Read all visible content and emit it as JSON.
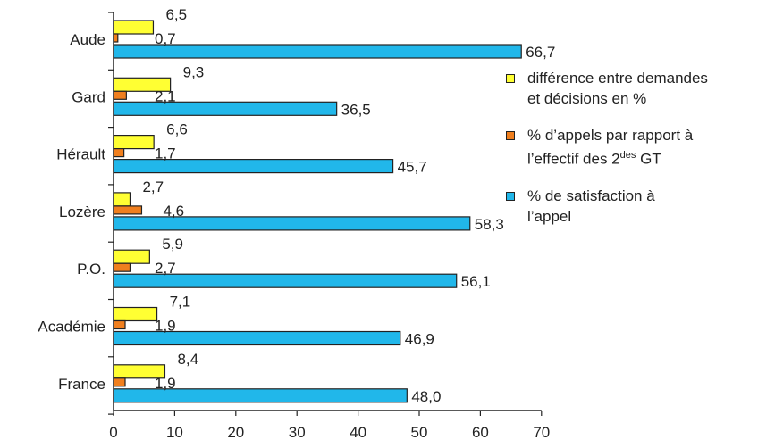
{
  "chart_data": {
    "type": "bar",
    "orientation": "horizontal",
    "categories": [
      "Aude",
      "Gard",
      "Hérault",
      "Lozère",
      "P.O.",
      "Académie",
      "France"
    ],
    "series": [
      {
        "name": "différence entre demandes et décisions en %",
        "color": "#ffff33",
        "values": [
          6.5,
          9.3,
          6.6,
          2.7,
          5.9,
          7.1,
          8.4
        ],
        "labels": [
          "6,5",
          "9,3",
          "6,6",
          "2,7",
          "5,9",
          "7,1",
          "8,4"
        ]
      },
      {
        "name": "% d’appels par rapport à l’effectif des 2des GT",
        "color": "#f07f1e",
        "values": [
          0.7,
          2.1,
          1.7,
          4.6,
          2.7,
          1.9,
          1.9
        ],
        "labels": [
          "0,7",
          "2,1",
          "1,7",
          "4,6",
          "2,7",
          "1,9",
          "1,9"
        ]
      },
      {
        "name": "% de satisfaction à l’appel",
        "color": "#21b7ea",
        "values": [
          66.7,
          36.5,
          45.7,
          58.3,
          56.1,
          46.9,
          48.0
        ],
        "labels": [
          "66,7",
          "36,5",
          "45,7",
          "58,3",
          "56,1",
          "46,9",
          "48,0"
        ]
      }
    ],
    "xlim": [
      0,
      70
    ],
    "xticks": [
      0,
      10,
      20,
      30,
      40,
      50,
      60,
      70
    ],
    "xtick_labels": [
      "0",
      "10",
      "20",
      "30",
      "40",
      "50",
      "60",
      "70"
    ],
    "title": "",
    "xlabel": "",
    "ylabel": "",
    "grid": false,
    "legend_position": "right"
  },
  "legend": {
    "items": [
      {
        "line1": "différence entre demandes",
        "line2": "et décisions en %",
        "line2_sup": "",
        "line2_tail": "",
        "color": "#ffff33"
      },
      {
        "line1": "% d’appels par rapport à",
        "line2": "l’effectif des 2",
        "line2_sup": "des",
        "line2_tail": " GT",
        "color": "#f07f1e"
      },
      {
        "line1": "% de satisfaction à",
        "line2": "l’appel",
        "line2_sup": "",
        "line2_tail": "",
        "color": "#21b7ea"
      }
    ]
  }
}
